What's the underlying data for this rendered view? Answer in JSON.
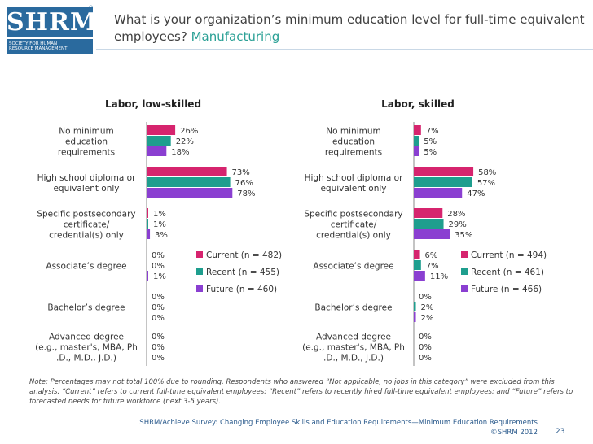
{
  "logo": {
    "letters": "SHRM",
    "line1": "SOCIETY FOR HUMAN",
    "line2": "RESOURCE MANAGEMENT",
    "reg": "®"
  },
  "header": {
    "title": "What is your organization’s minimum education level for full-time equivalent employees?",
    "subtitle": "Manufacturing"
  },
  "colors": {
    "current": "#d6246e",
    "recent": "#1e9e8e",
    "future": "#8a3fd1"
  },
  "chart_data": [
    {
      "type": "bar",
      "orientation": "horizontal",
      "title": "Labor, low-skilled",
      "categories": [
        [
          "No minimum",
          "education",
          "requirements"
        ],
        [
          "High school diploma or",
          "equivalent only"
        ],
        [
          "Specific postsecondary",
          "certificate/",
          "credential(s) only"
        ],
        [
          "Associate’s degree"
        ],
        [
          "Bachelor’s degree"
        ],
        [
          "Advanced degree",
          "(e.g., master's, MBA, Ph",
          ".D., M.D., J.D.)"
        ]
      ],
      "series": [
        {
          "name": "Current (n = 482)",
          "values": [
            26,
            73,
            1,
            0,
            0,
            0
          ]
        },
        {
          "name": "Recent (n = 455)",
          "values": [
            22,
            76,
            1,
            0,
            0,
            0
          ]
        },
        {
          "name": "Future (n = 460)",
          "values": [
            18,
            78,
            3,
            1,
            0,
            0
          ]
        }
      ],
      "xlim": [
        0,
        100
      ],
      "legend": "right",
      "grid": false
    },
    {
      "type": "bar",
      "orientation": "horizontal",
      "title": "Labor, skilled",
      "categories": [
        [
          "No minimum",
          "education",
          "requirements"
        ],
        [
          "High school diploma or",
          "equivalent only"
        ],
        [
          "Specific postsecondary",
          "certificate/",
          "credential(s) only"
        ],
        [
          "Associate’s degree"
        ],
        [
          "Bachelor’s degree"
        ],
        [
          "Advanced degree",
          "(e.g., master's, MBA, Ph",
          ".D., M.D., J.D.)"
        ]
      ],
      "series": [
        {
          "name": "Current (n = 494)",
          "values": [
            7,
            58,
            28,
            6,
            0,
            0
          ]
        },
        {
          "name": "Recent (n = 461)",
          "values": [
            5,
            57,
            29,
            7,
            2,
            0
          ]
        },
        {
          "name": "Future (n = 466)",
          "values": [
            5,
            47,
            35,
            11,
            2,
            0
          ]
        }
      ],
      "xlim": [
        0,
        100
      ],
      "legend": "right",
      "grid": false
    }
  ],
  "note": "Note: Percentages may not total 100% due to rounding. Respondents who answered “Not applicable, no jobs in this category” were excluded from this analysis. “Current” refers to current full-time equivalent employees; “Recent” refers to recently hired full-time equivalent employees; and “Future” refers to forecasted needs for future workforce (next 3-5 years).",
  "footer": {
    "source": "SHRM/Achieve Survey: Changing Employee Skills and Education Requirements—Minimum Education Requirements",
    "copyright": "©SHRM 2012",
    "page": "23"
  }
}
